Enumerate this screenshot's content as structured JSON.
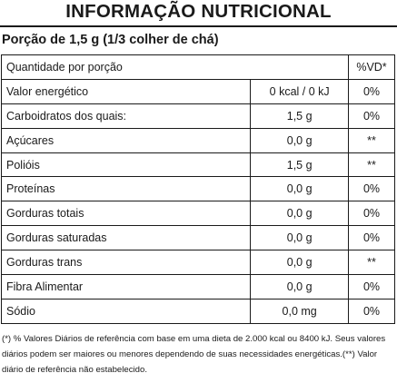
{
  "title": "INFORMAÇÃO NUTRICIONAL",
  "portion": "Porção de 1,5 g (1/3 colher de chá)",
  "header": {
    "quantity": "Quantidade por porção",
    "vd": "%VD*"
  },
  "rows": [
    {
      "name": "Valor energético",
      "qty": "0 kcal / 0 kJ",
      "vd": "0%"
    },
    {
      "name": "Carboidratos dos quais:",
      "qty": "1,5 g",
      "vd": "0%"
    },
    {
      "name": "Açúcares",
      "qty": "0,0 g",
      "vd": "**"
    },
    {
      "name": "Polióis",
      "qty": "1,5 g",
      "vd": "**"
    },
    {
      "name": "Proteínas",
      "qty": "0,0 g",
      "vd": "0%"
    },
    {
      "name": "Gorduras totais",
      "qty": "0,0 g",
      "vd": "0%"
    },
    {
      "name": "Gorduras saturadas",
      "qty": "0,0 g",
      "vd": "0%"
    },
    {
      "name": "Gorduras trans",
      "qty": "0,0 g",
      "vd": "**"
    },
    {
      "name": "Fibra Alimentar",
      "qty": "0,0 g",
      "vd": "0%"
    },
    {
      "name": "Sódio",
      "qty": "0,0 mg",
      "vd": "0%"
    }
  ],
  "footnote": "(*) % Valores Diários de referência com base em uma dieta de 2.000 kcal ou 8400 kJ. Seus valores diários podem ser maiores ou menores dependendo de suas necessidades energéticas.(**) Valor diário de referência não estabelecido."
}
